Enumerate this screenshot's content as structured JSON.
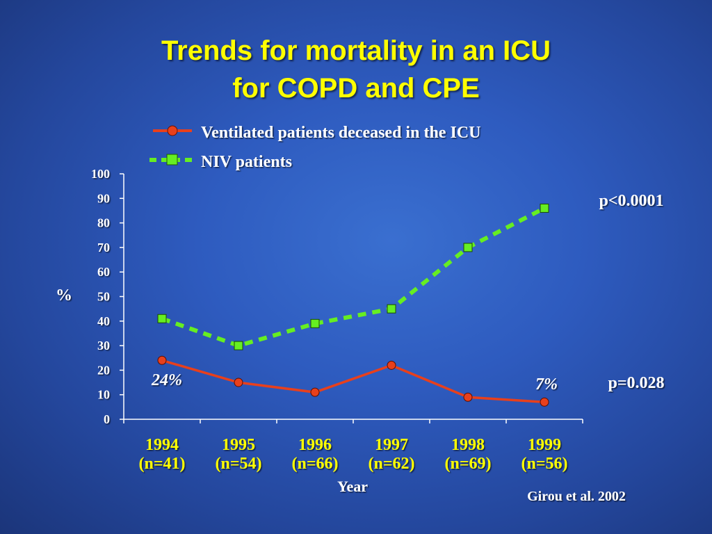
{
  "title_line1": "Trends for mortality in an ICU",
  "title_line2": "for COPD and CPE",
  "citation": "Girou et al. 2002",
  "chart_data": {
    "type": "line",
    "categories": [
      "1994",
      "1995",
      "1996",
      "1997",
      "1998",
      "1999"
    ],
    "category_sublabels": [
      "(n=41)",
      "(n=54)",
      "(n=66)",
      "(n=62)",
      "(n=69)",
      "(n=56)"
    ],
    "xlabel": "Year",
    "ylabel": "%",
    "ylim": [
      0,
      100
    ],
    "yticks": [
      0,
      10,
      20,
      30,
      40,
      50,
      60,
      70,
      80,
      90,
      100
    ],
    "legend_position": "top",
    "grid": false,
    "series": [
      {
        "name": "Ventilated patients deceased in the ICU",
        "values": [
          24,
          15,
          11,
          22,
          9,
          7
        ],
        "color": "#e8401c",
        "marker": "circle",
        "line": "solid",
        "p_value": "p=0.028"
      },
      {
        "name": "NIV patients",
        "values": [
          41,
          30,
          39,
          45,
          70,
          86
        ],
        "color": "#66ee22",
        "marker": "square",
        "line": "dashed",
        "p_value": "p<0.0001"
      }
    ],
    "annotations": [
      {
        "text": "24%",
        "series": 0,
        "category": "1994"
      },
      {
        "text": "7%",
        "series": 0,
        "category": "1999"
      }
    ]
  }
}
